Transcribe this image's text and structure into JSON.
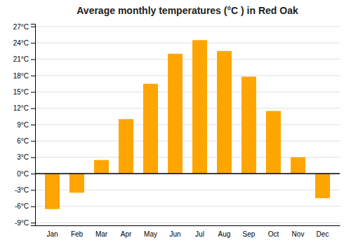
{
  "chart_data": {
    "type": "bar",
    "title": "Average monthly temperatures (°C ) in Red Oak",
    "categories": [
      "Jan",
      "Feb",
      "Mar",
      "Apr",
      "May",
      "Jun",
      "Jul",
      "Aug",
      "Sep",
      "Oct",
      "Nov",
      "Dec"
    ],
    "values": [
      -6.5,
      -3.5,
      2.5,
      10.0,
      16.5,
      22.0,
      24.5,
      22.5,
      17.8,
      11.5,
      3.0,
      -4.5
    ],
    "color": "#FFA500",
    "ylim": [
      -9.5,
      27.5
    ],
    "yticks": [
      {
        "value": -9,
        "label": "-9°C"
      },
      {
        "value": -6,
        "label": "-6°C"
      },
      {
        "value": -3,
        "label": "-3°C"
      },
      {
        "value": 0,
        "label": "0°C"
      },
      {
        "value": 3,
        "label": "3°C"
      },
      {
        "value": 6,
        "label": "6°C"
      },
      {
        "value": 9,
        "label": "9°C"
      },
      {
        "value": 12,
        "label": "12°C"
      },
      {
        "value": 15,
        "label": "15°C"
      },
      {
        "value": 18,
        "label": "18°C"
      },
      {
        "value": 21,
        "label": "21°C"
      },
      {
        "value": 24,
        "label": "24°C"
      },
      {
        "value": 27,
        "label": "27°C"
      }
    ],
    "grid": true
  }
}
